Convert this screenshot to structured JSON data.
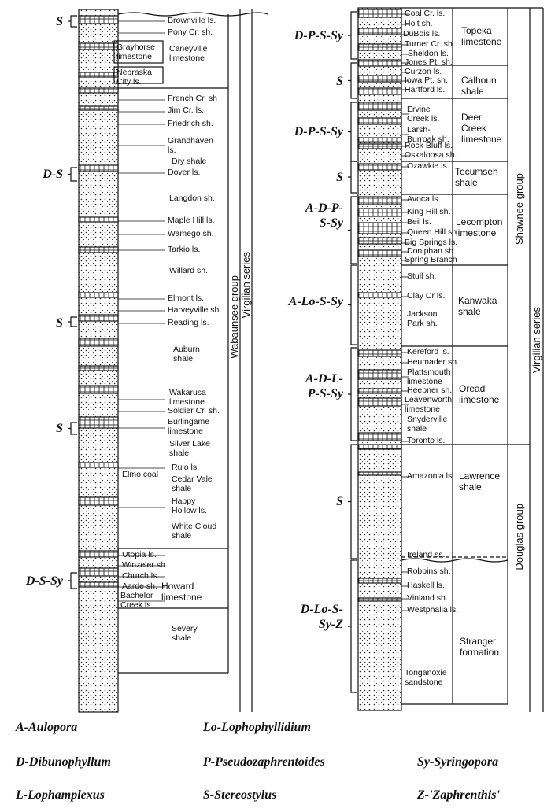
{
  "left": {
    "markers": [
      "S",
      "D-S",
      "S",
      "S",
      "D-S-Sy"
    ],
    "members": [
      "Brownville ls.",
      "Pony Cr. sh.",
      "Grayhorse\nlimestone",
      "Caneyville\nlimestone",
      "Nebraska\nCity ls.",
      "French Cr. sh",
      "Jim Cr. ls.",
      "Friedrich sh.",
      "Grandhaven\nls.",
      "Dry shale",
      "Dover ls.",
      "Langdon sh.",
      "Maple Hill ls.",
      "Wamego sh.",
      "Tarkio ls.",
      "Willard sh.",
      "Elmont ls.",
      "Harveyville sh.",
      "Reading ls.",
      "Auburn\nshale",
      "Wakarusa\nlimestone",
      "Soldier Cr. sh.",
      "Burlingame\nlimestone",
      "Silver Lake\nshale",
      "Rulo ls.",
      "Elmo coal",
      "Cedar Vale\nshale",
      "Happy\nHollow ls.",
      "White Cloud\nshale",
      "Utopia ls.",
      "Winzeler sh",
      "Church ls.",
      "Aarde sh.",
      "Bachelor\nCreek ls.",
      "Howard\nlimestone",
      "Severy\nshale"
    ],
    "group": "Wabaunsee group",
    "series": "Virgilian series"
  },
  "right": {
    "markers": [
      "D-P-S-Sy",
      "S",
      "D-P-S-Sy",
      "S",
      "A-D-P-\nS-Sy",
      "A-Lo-S-Sy",
      "A-D-L-\nP-S-Sy",
      "S",
      "D-Lo-S-\nSy-Z"
    ],
    "members": [
      "Coal Cr. ls.",
      "Holt sh.",
      "DuBois ls.",
      "Turner Cr. sh.",
      "Sheldon ls.",
      "Jones Pt. sh.",
      "Curzon ls.",
      "Iowa Pt. sh.",
      "Hartford ls.",
      "Ervine\nCreek ls.",
      "Larsh-\nBurroak sh.",
      "Rock Bluff ls.",
      "Oskaloosa sh.",
      "Ozawkie ls.",
      "Avoca ls.",
      "King Hill sh.",
      "Beil ls.",
      "Queen Hill sh.",
      "Big Springs ls.",
      "Doniphan sh.",
      "Spring Branch",
      "Stull sh.",
      "Clay Cr ls.",
      "Jackson\nPark sh.",
      "Kereford ls.",
      "Heumader sh.",
      "Plattsmouth\nlimestone",
      "Heebner sh.",
      "Leavenworth\nlimestone",
      "Snyderville\nshale",
      "Toronto ls.",
      "Amazonia ls.",
      "Ireland ss.",
      "Robbins sh.",
      "Haskell ls.",
      "Vinland sh.",
      "Westphalia ls.",
      "Tonganoxie\nsandstone"
    ],
    "formations": [
      "Topeka\nlimestone",
      "Calhoun\nshale",
      "Deer\nCreek\nlimestone",
      "Tecumseh\nshale",
      "Lecompton\nlimestone",
      "Kanwaka\nshale",
      "Oread\nlimestone",
      "Lawrence\nshale",
      "Stranger\nformation"
    ],
    "groups": [
      "Shawnee group",
      "Douglas group"
    ],
    "series": "Virgilian series"
  },
  "legend": [
    "A-Aulopora",
    "D-Dibunophyllum",
    "L-Lophamplexus",
    "Lo-Lophophyllidium",
    "P-Pseudozaphrentoides",
    "S-Stereostylus",
    "Sy-Syringopora",
    "Z-'Zaphrenthis'"
  ]
}
